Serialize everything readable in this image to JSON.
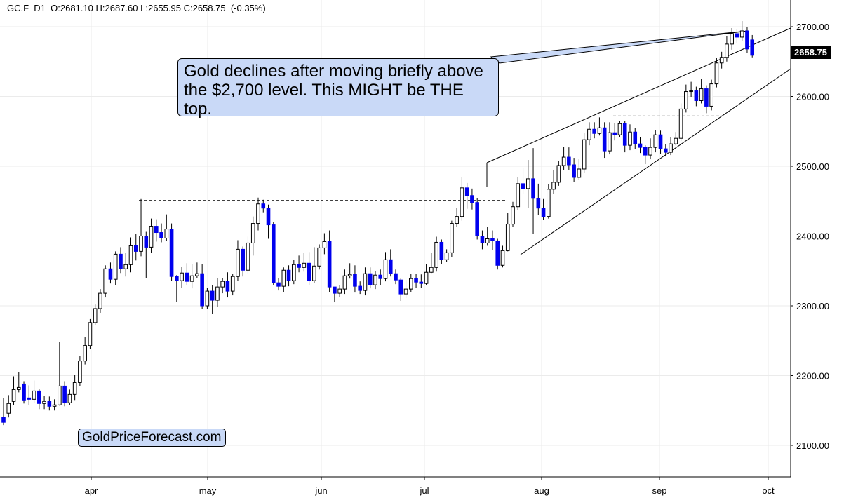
{
  "header": {
    "symbol": "GC.F",
    "timeframe": "D1",
    "open": "O:2681.10",
    "high": "H:2687.60",
    "low": "L:2655.95",
    "close": "C:2658.75",
    "change": "(-0.35%)"
  },
  "annotation": {
    "text": "Gold declines after moving briefly above the $2,700 level. This MIGHT be THE top."
  },
  "watermark": {
    "text": "GoldPriceForecast.com"
  },
  "last_price_label": "2658.75",
  "colors": {
    "bullish_body": "#ffffff",
    "bearish_body": "#0000ee",
    "callout": "#c9d9f7"
  },
  "chart_data": {
    "type": "candlestick",
    "ylim": [
      2055,
      2720
    ],
    "y_ticks": [
      "2100.00",
      "2200.00",
      "2300.00",
      "2400.00",
      "2500.00",
      "2600.00",
      "2700.00"
    ],
    "x_ticks": [
      "apr",
      "may",
      "jun",
      "jul",
      "aug",
      "sep",
      "oct"
    ],
    "grid": true,
    "resistance_levels": [
      2451,
      2572
    ],
    "candles": [
      [
        2140,
        2133,
        2168,
        2129
      ],
      [
        2146,
        2160,
        2172,
        2140
      ],
      [
        2163,
        2180,
        2199,
        2158
      ],
      [
        2180,
        2183,
        2205,
        2176
      ],
      [
        2188,
        2165,
        2192,
        2160
      ],
      [
        2168,
        2166,
        2186,
        2158
      ],
      [
        2166,
        2178,
        2193,
        2161
      ],
      [
        2178,
        2160,
        2181,
        2152
      ],
      [
        2160,
        2163,
        2171,
        2152
      ],
      [
        2163,
        2156,
        2170,
        2150
      ],
      [
        2156,
        2158,
        2166,
        2150
      ],
      [
        2158,
        2185,
        2248,
        2157
      ],
      [
        2185,
        2161,
        2192,
        2156
      ],
      [
        2161,
        2173,
        2180,
        2158
      ],
      [
        2173,
        2190,
        2201,
        2165
      ],
      [
        2190,
        2221,
        2228,
        2185
      ],
      [
        2221,
        2243,
        2255,
        2216
      ],
      [
        2243,
        2276,
        2281,
        2238
      ],
      [
        2276,
        2296,
        2302,
        2272
      ],
      [
        2296,
        2318,
        2324,
        2290
      ],
      [
        2318,
        2353,
        2358,
        2312
      ],
      [
        2353,
        2338,
        2362,
        2332
      ],
      [
        2338,
        2374,
        2378,
        2330
      ],
      [
        2374,
        2353,
        2384,
        2347
      ],
      [
        2353,
        2359,
        2376,
        2342
      ],
      [
        2359,
        2386,
        2398,
        2348
      ],
      [
        2386,
        2378,
        2403,
        2365
      ],
      [
        2378,
        2400,
        2453,
        2371
      ],
      [
        2400,
        2384,
        2406,
        2340
      ],
      [
        2384,
        2414,
        2425,
        2376
      ],
      [
        2414,
        2405,
        2424,
        2392
      ],
      [
        2405,
        2397,
        2418,
        2391
      ],
      [
        2397,
        2410,
        2431,
        2393
      ],
      [
        2410,
        2342,
        2418,
        2336
      ],
      [
        2342,
        2336,
        2344,
        2306
      ],
      [
        2336,
        2347,
        2356,
        2326
      ],
      [
        2347,
        2335,
        2361,
        2330
      ],
      [
        2335,
        2343,
        2360,
        2325
      ],
      [
        2343,
        2346,
        2362,
        2340
      ],
      [
        2346,
        2300,
        2360,
        2295
      ],
      [
        2300,
        2321,
        2326,
        2296
      ],
      [
        2321,
        2308,
        2330,
        2288
      ],
      [
        2308,
        2327,
        2340,
        2299
      ],
      [
        2327,
        2335,
        2340,
        2318
      ],
      [
        2335,
        2321,
        2348,
        2312
      ],
      [
        2321,
        2342,
        2346,
        2315
      ],
      [
        2342,
        2381,
        2394,
        2336
      ],
      [
        2381,
        2351,
        2385,
        2342
      ],
      [
        2351,
        2390,
        2399,
        2345
      ],
      [
        2390,
        2418,
        2428,
        2372
      ],
      [
        2418,
        2446,
        2455,
        2408
      ],
      [
        2446,
        2440,
        2452,
        2434
      ],
      [
        2440,
        2416,
        2445,
        2396
      ],
      [
        2416,
        2333,
        2420,
        2330
      ],
      [
        2333,
        2328,
        2340,
        2322
      ],
      [
        2328,
        2351,
        2355,
        2320
      ],
      [
        2351,
        2336,
        2358,
        2328
      ],
      [
        2336,
        2359,
        2366,
        2331
      ],
      [
        2359,
        2355,
        2372,
        2348
      ],
      [
        2355,
        2361,
        2376,
        2349
      ],
      [
        2361,
        2336,
        2377,
        2330
      ],
      [
        2336,
        2357,
        2384,
        2333
      ],
      [
        2357,
        2383,
        2388,
        2352
      ],
      [
        2383,
        2392,
        2404,
        2374
      ],
      [
        2392,
        2327,
        2408,
        2320
      ],
      [
        2327,
        2318,
        2325,
        2305
      ],
      [
        2318,
        2324,
        2330,
        2313
      ],
      [
        2324,
        2343,
        2352,
        2317
      ],
      [
        2343,
        2345,
        2361,
        2339
      ],
      [
        2345,
        2328,
        2358,
        2319
      ],
      [
        2328,
        2322,
        2335,
        2317
      ],
      [
        2322,
        2346,
        2355,
        2315
      ],
      [
        2346,
        2330,
        2355,
        2325
      ],
      [
        2330,
        2344,
        2350,
        2324
      ],
      [
        2344,
        2339,
        2352,
        2330
      ],
      [
        2339,
        2366,
        2377,
        2335
      ],
      [
        2366,
        2346,
        2381,
        2342
      ],
      [
        2346,
        2337,
        2352,
        2331
      ],
      [
        2337,
        2317,
        2339,
        2307
      ],
      [
        2317,
        2324,
        2337,
        2311
      ],
      [
        2324,
        2339,
        2346,
        2320
      ],
      [
        2339,
        2334,
        2346,
        2326
      ],
      [
        2334,
        2332,
        2345,
        2326
      ],
      [
        2332,
        2348,
        2360,
        2330
      ],
      [
        2348,
        2355,
        2376,
        2347
      ],
      [
        2355,
        2391,
        2399,
        2349
      ],
      [
        2391,
        2366,
        2395,
        2360
      ],
      [
        2366,
        2376,
        2381,
        2363
      ],
      [
        2376,
        2418,
        2422,
        2370
      ],
      [
        2418,
        2428,
        2440,
        2413
      ],
      [
        2428,
        2469,
        2484,
        2422
      ],
      [
        2469,
        2458,
        2476,
        2439
      ],
      [
        2458,
        2448,
        2468,
        2438
      ],
      [
        2448,
        2400,
        2454,
        2395
      ],
      [
        2400,
        2390,
        2408,
        2381
      ],
      [
        2390,
        2396,
        2413,
        2386
      ],
      [
        2396,
        2393,
        2408,
        2380
      ],
      [
        2393,
        2358,
        2396,
        2352
      ],
      [
        2358,
        2379,
        2386,
        2355
      ],
      [
        2379,
        2417,
        2433,
        2378
      ],
      [
        2417,
        2442,
        2449,
        2413
      ],
      [
        2442,
        2475,
        2484,
        2437
      ],
      [
        2475,
        2468,
        2497,
        2460
      ],
      [
        2468,
        2482,
        2509,
        2440
      ],
      [
        2482,
        2454,
        2526,
        2403
      ],
      [
        2454,
        2440,
        2475,
        2430
      ],
      [
        2440,
        2428,
        2453,
        2423
      ],
      [
        2428,
        2467,
        2474,
        2425
      ],
      [
        2467,
        2477,
        2495,
        2460
      ],
      [
        2477,
        2501,
        2508,
        2472
      ],
      [
        2501,
        2513,
        2528,
        2495
      ],
      [
        2513,
        2502,
        2527,
        2495
      ],
      [
        2502,
        2484,
        2512,
        2477
      ],
      [
        2484,
        2496,
        2510,
        2480
      ],
      [
        2496,
        2538,
        2548,
        2490
      ],
      [
        2538,
        2553,
        2563,
        2530
      ],
      [
        2553,
        2547,
        2563,
        2540
      ],
      [
        2547,
        2555,
        2570,
        2544
      ],
      [
        2555,
        2522,
        2563,
        2512
      ],
      [
        2522,
        2548,
        2563,
        2517
      ],
      [
        2548,
        2545,
        2562,
        2537
      ],
      [
        2545,
        2561,
        2565,
        2542
      ],
      [
        2561,
        2530,
        2565,
        2520
      ],
      [
        2530,
        2549,
        2560,
        2523
      ],
      [
        2549,
        2532,
        2555,
        2525
      ],
      [
        2532,
        2527,
        2542,
        2519
      ],
      [
        2527,
        2516,
        2530,
        2503
      ],
      [
        2516,
        2527,
        2540,
        2510
      ],
      [
        2527,
        2545,
        2552,
        2520
      ],
      [
        2545,
        2525,
        2551,
        2518
      ],
      [
        2525,
        2520,
        2532,
        2514
      ],
      [
        2520,
        2532,
        2542,
        2516
      ],
      [
        2532,
        2540,
        2549,
        2530
      ],
      [
        2540,
        2582,
        2590,
        2536
      ],
      [
        2582,
        2607,
        2617,
        2577
      ],
      [
        2607,
        2608,
        2621,
        2599
      ],
      [
        2608,
        2594,
        2614,
        2586
      ],
      [
        2594,
        2611,
        2625,
        2590
      ],
      [
        2611,
        2586,
        2616,
        2576
      ],
      [
        2586,
        2618,
        2624,
        2580
      ],
      [
        2618,
        2648,
        2655,
        2613
      ],
      [
        2648,
        2656,
        2664,
        2640
      ],
      [
        2656,
        2675,
        2686,
        2650
      ],
      [
        2675,
        2690,
        2698,
        2667
      ],
      [
        2690,
        2685,
        2697,
        2676
      ],
      [
        2685,
        2694,
        2708,
        2680
      ],
      [
        2694,
        2668,
        2699,
        2662
      ],
      [
        2681,
        2659,
        2688,
        2656
      ]
    ]
  }
}
